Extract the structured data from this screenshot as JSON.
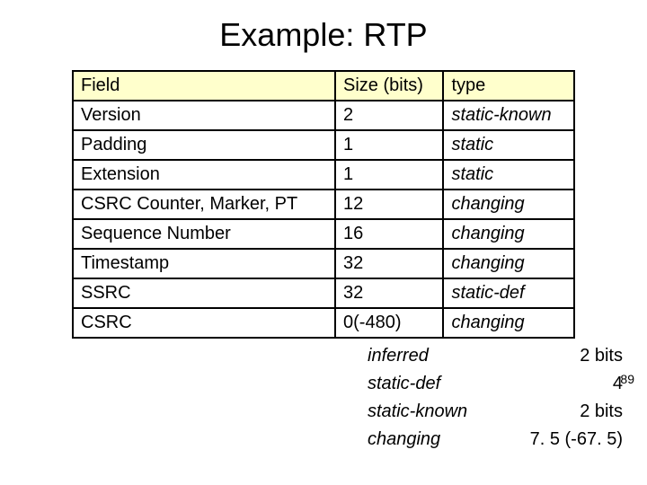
{
  "title": "Example: RTP",
  "main_table": {
    "columns": [
      "Field",
      "Size (bits)",
      "type"
    ],
    "rows": [
      {
        "field": "Version",
        "size": "2",
        "type": "static-known"
      },
      {
        "field": "Padding",
        "size": "1",
        "type": "static"
      },
      {
        "field": "Extension",
        "size": "1",
        "type": "static"
      },
      {
        "field": "CSRC Counter, Marker, PT",
        "size": "12",
        "type": "changing"
      },
      {
        "field": "Sequence Number",
        "size": "16",
        "type": "changing"
      },
      {
        "field": "Timestamp",
        "size": "32",
        "type": "changing"
      },
      {
        "field": "SSRC",
        "size": "32",
        "type": "static-def"
      },
      {
        "field": "CSRC",
        "size": "0(-480)",
        "type": "changing"
      }
    ]
  },
  "summary": {
    "rows": [
      {
        "key": "inferred",
        "value": "2 bits"
      },
      {
        "key": "static-def",
        "value": "4"
      },
      {
        "key": "static-known",
        "value": "2 bits"
      },
      {
        "key": "changing",
        "value": "7. 5 (-67. 5)"
      }
    ]
  },
  "page_number": "89",
  "style": {
    "header_bg": "#ffffcc",
    "border_color": "#000000",
    "title_fontsize": 36,
    "cell_fontsize": 20,
    "summary_fontsize": 20
  }
}
